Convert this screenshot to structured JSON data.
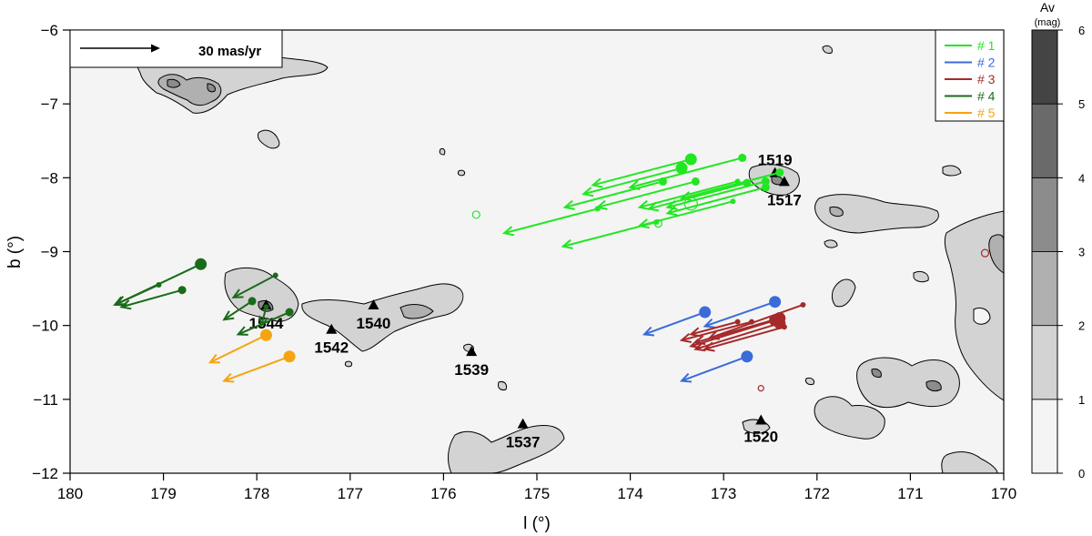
{
  "chart_data": {
    "type": "scatter",
    "xlabel": "l (°)",
    "ylabel": "b (°)",
    "xlim": [
      180,
      170
    ],
    "ylim": [
      -12,
      -6
    ],
    "x_ticks": [
      "180",
      "179",
      "178",
      "177",
      "176",
      "175",
      "174",
      "173",
      "172",
      "171",
      "170"
    ],
    "y_ticks": [
      "−6",
      "−7",
      "−8",
      "−9",
      "−10",
      "−11",
      "−12"
    ],
    "scale_label": "30 mas/yr",
    "colorbar": {
      "title": "Av",
      "unit": "(mag)",
      "ticks": [
        "0",
        "1",
        "2",
        "3",
        "4",
        "5",
        "6"
      ],
      "levels": [
        0,
        1,
        2,
        3,
        4,
        5,
        6
      ],
      "colors": [
        "#f4f4f4",
        "#d3d3d3",
        "#b0b0b0",
        "#8c8c8c",
        "#6a6a6a",
        "#444444"
      ]
    },
    "legend": [
      {
        "label": "# 1",
        "color": "#22e622"
      },
      {
        "label": "# 2",
        "color": "#3a6bd8"
      },
      {
        "label": "# 3",
        "color": "#a52a2a"
      },
      {
        "label": "# 4",
        "color": "#1a6b1a"
      },
      {
        "label": "# 5",
        "color": "#f5a412"
      }
    ],
    "clusters": [
      {
        "label": "1519",
        "l": 172.45,
        "b": -7.93
      },
      {
        "label": "1517",
        "l": 172.35,
        "b": -8.05
      },
      {
        "label": "1544",
        "l": 177.9,
        "b": -9.72
      },
      {
        "label": "1540",
        "l": 176.75,
        "b": -9.72
      },
      {
        "label": "1542",
        "l": 177.2,
        "b": -10.05
      },
      {
        "label": "1539",
        "l": 175.7,
        "b": -10.35
      },
      {
        "label": "1537",
        "l": 175.15,
        "b": -11.33
      },
      {
        "label": "1520",
        "l": 172.6,
        "b": -11.28
      }
    ],
    "series": [
      {
        "group": 1,
        "color": "#22e622",
        "stars": [
          {
            "l": 173.35,
            "b": -7.75,
            "dl": 1.05,
            "db": -0.35,
            "size": "L"
          },
          {
            "l": 173.45,
            "b": -7.87,
            "dl": 1.05,
            "db": -0.35,
            "size": "L"
          },
          {
            "l": 173.3,
            "b": -8.05,
            "dl": 1.05,
            "db": -0.35,
            "size": "M"
          },
          {
            "l": 173.65,
            "b": -8.05,
            "dl": 1.05,
            "db": -0.35,
            "size": "M"
          },
          {
            "l": 172.8,
            "b": -7.73,
            "dl": 1.2,
            "db": -0.4,
            "size": "M"
          },
          {
            "l": 172.4,
            "b": -7.93,
            "dl": 1.05,
            "db": -0.35,
            "size": "M"
          },
          {
            "l": 172.55,
            "b": -8.05,
            "dl": 1.05,
            "db": -0.35,
            "size": "M"
          },
          {
            "l": 172.55,
            "b": -8.13,
            "dl": 1.05,
            "db": -0.35,
            "size": "M"
          },
          {
            "l": 172.75,
            "b": -8.07,
            "dl": 1.05,
            "db": -0.35,
            "size": "M"
          },
          {
            "l": 172.85,
            "b": -8.05,
            "dl": 1.05,
            "db": -0.35,
            "size": "S"
          },
          {
            "l": 174.35,
            "b": -8.42,
            "dl": 1.0,
            "db": -0.33,
            "size": "S"
          },
          {
            "l": 173.72,
            "b": -8.6,
            "dl": 1.0,
            "db": -0.33,
            "size": "S"
          },
          {
            "l": 172.9,
            "b": -8.32,
            "dl": 1.0,
            "db": -0.33,
            "size": "S"
          }
        ],
        "open": [
          {
            "l": 175.65,
            "b": -8.5,
            "r": 4
          },
          {
            "l": 173.35,
            "b": -8.35,
            "r": 7
          },
          {
            "l": 173.7,
            "b": -8.62,
            "r": 4
          }
        ]
      },
      {
        "group": 2,
        "color": "#3a6bd8",
        "stars": [
          {
            "l": 173.2,
            "b": -9.82,
            "dl": 0.65,
            "db": -0.3,
            "size": "L"
          },
          {
            "l": 172.45,
            "b": -9.68,
            "dl": 0.75,
            "db": -0.33,
            "size": "L"
          },
          {
            "l": 172.75,
            "b": -10.42,
            "dl": 0.7,
            "db": -0.33,
            "size": "L"
          }
        ],
        "open": []
      },
      {
        "group": 3,
        "color": "#a52a2a",
        "stars": [
          {
            "l": 172.15,
            "b": -9.72,
            "dl": 1.0,
            "db": -0.45,
            "size": "S"
          },
          {
            "l": 172.4,
            "b": -9.9,
            "dl": 0.9,
            "db": -0.33,
            "size": "L"
          },
          {
            "l": 172.45,
            "b": -9.93,
            "dl": 0.9,
            "db": -0.35,
            "size": "L"
          },
          {
            "l": 172.4,
            "b": -9.97,
            "dl": 0.9,
            "db": -0.35,
            "size": "L"
          },
          {
            "l": 172.35,
            "b": -10.02,
            "dl": 0.85,
            "db": -0.3,
            "size": "S"
          },
          {
            "l": 172.7,
            "b": -9.95,
            "dl": 0.75,
            "db": -0.25,
            "size": "S"
          },
          {
            "l": 172.85,
            "b": -9.95,
            "dl": 0.5,
            "db": -0.17,
            "size": "S"
          }
        ],
        "open": [
          {
            "l": 170.2,
            "b": -9.02,
            "r": 4
          },
          {
            "l": 172.6,
            "b": -10.85,
            "r": 3
          }
        ]
      },
      {
        "group": 4,
        "color": "#1a6b1a",
        "stars": [
          {
            "l": 178.6,
            "b": -9.17,
            "dl": 0.92,
            "db": -0.55,
            "size": "L"
          },
          {
            "l": 178.8,
            "b": -9.52,
            "dl": 0.65,
            "db": -0.23,
            "size": "M"
          },
          {
            "l": 179.05,
            "b": -9.45,
            "dl": 0.45,
            "db": -0.26,
            "size": "S"
          },
          {
            "l": 177.8,
            "b": -9.32,
            "dl": 0.45,
            "db": -0.3,
            "size": "S"
          },
          {
            "l": 177.65,
            "b": -9.82,
            "dl": 0.55,
            "db": -0.3,
            "size": "M"
          },
          {
            "l": 178.05,
            "b": -9.67,
            "dl": 0.3,
            "db": -0.25,
            "size": "M"
          },
          {
            "l": 177.9,
            "b": -9.75,
            "dl": 0.05,
            "db": -0.25,
            "size": "S"
          }
        ],
        "open": []
      },
      {
        "group": 5,
        "color": "#f5a412",
        "stars": [
          {
            "l": 177.9,
            "b": -10.13,
            "dl": 0.6,
            "db": -0.37,
            "size": "L"
          },
          {
            "l": 177.65,
            "b": -10.42,
            "dl": 0.7,
            "db": -0.33,
            "size": "L"
          }
        ],
        "open": []
      }
    ]
  }
}
